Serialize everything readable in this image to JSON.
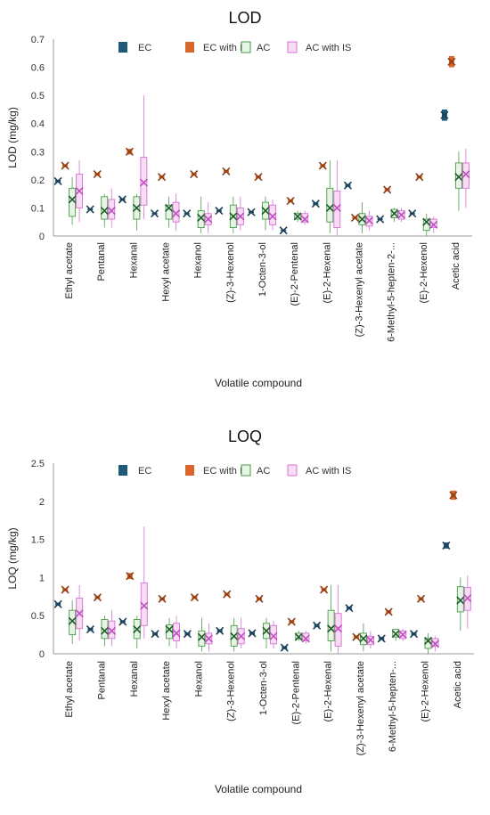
{
  "chart_data": [
    {
      "type": "box",
      "title": "LOD",
      "xlabel": "Volatile compound",
      "ylabel": "LOD (mg/kg)",
      "ylim": [
        0,
        0.7
      ],
      "yticks": [
        "0",
        "0.1",
        "0.2",
        "0.3",
        "0.4",
        "0.5",
        "0.6",
        "0.7"
      ],
      "legend_position": "top",
      "grid": false,
      "categories": [
        "Ethyl acetate",
        "Pentanal",
        "Hexanal",
        "Hexyl acetate",
        "Hexanol",
        "(Z)-3-Hexenol",
        "1-Octen-3-ol",
        "(E)-2-Pentenal",
        "(E)-2-Hexenal",
        "(Z)-3-Hexenyl acetate",
        "6-Methyl-5-hepten-2-...",
        "(E)-2-Hexenol",
        "Acetic acid"
      ],
      "series": [
        {
          "name": "EC",
          "color": "#1f5a7a",
          "mean": [
            0.195,
            0.095,
            0.13,
            0.08,
            0.08,
            0.09,
            0.085,
            0.02,
            0.115,
            0.18,
            0.06,
            0.08,
            0.43
          ],
          "q1": [
            0.19,
            0.092,
            0.125,
            0.077,
            0.077,
            0.087,
            0.082,
            0.017,
            0.11,
            0.175,
            0.057,
            0.077,
            0.41
          ],
          "q3": [
            0.2,
            0.098,
            0.135,
            0.083,
            0.083,
            0.093,
            0.088,
            0.023,
            0.12,
            0.185,
            0.063,
            0.083,
            0.45
          ],
          "min": [
            0.19,
            0.092,
            0.125,
            0.077,
            0.077,
            0.087,
            0.082,
            0.017,
            0.11,
            0.175,
            0.057,
            0.077,
            0.41
          ],
          "max": [
            0.2,
            0.098,
            0.135,
            0.083,
            0.083,
            0.093,
            0.088,
            0.023,
            0.12,
            0.185,
            0.063,
            0.083,
            0.45
          ]
        },
        {
          "name": "EC with IS",
          "color": "#d9662b",
          "mean": [
            0.25,
            0.22,
            0.3,
            0.21,
            0.22,
            0.23,
            0.21,
            0.125,
            0.25,
            0.065,
            0.165,
            0.21,
            0.62
          ],
          "q1": [
            0.245,
            0.215,
            0.29,
            0.205,
            0.215,
            0.225,
            0.205,
            0.12,
            0.245,
            0.06,
            0.16,
            0.205,
            0.6
          ],
          "q3": [
            0.255,
            0.225,
            0.31,
            0.215,
            0.225,
            0.235,
            0.215,
            0.13,
            0.255,
            0.07,
            0.17,
            0.215,
            0.64
          ],
          "min": [
            0.245,
            0.215,
            0.29,
            0.205,
            0.215,
            0.225,
            0.205,
            0.12,
            0.245,
            0.06,
            0.16,
            0.205,
            0.6
          ],
          "max": [
            0.255,
            0.225,
            0.31,
            0.215,
            0.225,
            0.235,
            0.215,
            0.13,
            0.255,
            0.07,
            0.17,
            0.215,
            0.64
          ]
        },
        {
          "name": "AC",
          "color": "#4a9a4a",
          "mean": [
            0.13,
            0.09,
            0.1,
            0.1,
            0.065,
            0.07,
            0.09,
            0.07,
            0.1,
            0.06,
            0.08,
            0.05,
            0.21
          ],
          "q1": [
            0.07,
            0.06,
            0.06,
            0.06,
            0.03,
            0.03,
            0.06,
            0.06,
            0.05,
            0.04,
            0.065,
            0.02,
            0.17
          ],
          "q3": [
            0.17,
            0.14,
            0.14,
            0.11,
            0.09,
            0.11,
            0.12,
            0.08,
            0.17,
            0.08,
            0.095,
            0.06,
            0.26
          ],
          "min": [
            0.04,
            0.03,
            0.02,
            0.03,
            0.01,
            0.01,
            0.02,
            0.05,
            0.01,
            0.01,
            0.05,
            0.0,
            0.09
          ],
          "max": [
            0.21,
            0.15,
            0.15,
            0.14,
            0.14,
            0.14,
            0.14,
            0.09,
            0.27,
            0.12,
            0.1,
            0.08,
            0.3
          ]
        },
        {
          "name": "AC with IS",
          "color": "#d472d4",
          "mean": [
            0.16,
            0.09,
            0.19,
            0.08,
            0.06,
            0.07,
            0.07,
            0.06,
            0.1,
            0.055,
            0.075,
            0.04,
            0.22
          ],
          "q1": [
            0.1,
            0.06,
            0.11,
            0.05,
            0.04,
            0.04,
            0.04,
            0.05,
            0.03,
            0.035,
            0.06,
            0.03,
            0.17
          ],
          "q3": [
            0.22,
            0.13,
            0.28,
            0.12,
            0.08,
            0.1,
            0.11,
            0.08,
            0.16,
            0.07,
            0.09,
            0.06,
            0.26
          ],
          "min": [
            0.05,
            0.03,
            0.06,
            0.02,
            0.01,
            0.02,
            0.02,
            0.04,
            0.0,
            0.02,
            0.05,
            0.01,
            0.1
          ],
          "max": [
            0.27,
            0.17,
            0.5,
            0.15,
            0.12,
            0.14,
            0.13,
            0.09,
            0.27,
            0.09,
            0.1,
            0.07,
            0.31
          ]
        }
      ]
    },
    {
      "type": "box",
      "title": "LOQ",
      "xlabel": "Volatile compound",
      "ylabel": "LOQ  (mg/kg)",
      "ylim": [
        0,
        2.5
      ],
      "yticks": [
        "0",
        "0.5",
        "1",
        "1.5",
        "2",
        "2.5"
      ],
      "legend_position": "top",
      "grid": false,
      "categories": [
        "Ethyl acetate",
        "Pentanal",
        "Hexanal",
        "Hexyl acetate",
        "Hexanol",
        "(Z)-3-Hexenol",
        "1-Octen-3-ol",
        "(E)-2-Pentenal",
        "(E)-2-Hexenal",
        "(Z)-3-Hexenyl acetate",
        "6-Methyl-5-hepten-...",
        "(E)-2-Hexenol",
        "Acetic acid"
      ],
      "series": [
        {
          "name": "EC",
          "color": "#1f5a7a",
          "mean": [
            0.65,
            0.32,
            0.42,
            0.26,
            0.26,
            0.3,
            0.27,
            0.08,
            0.37,
            0.6,
            0.2,
            0.26,
            1.42
          ],
          "q1": [
            0.63,
            0.3,
            0.4,
            0.24,
            0.24,
            0.28,
            0.25,
            0.06,
            0.35,
            0.58,
            0.18,
            0.24,
            1.38
          ],
          "q3": [
            0.67,
            0.34,
            0.44,
            0.28,
            0.28,
            0.32,
            0.29,
            0.1,
            0.39,
            0.62,
            0.22,
            0.28,
            1.46
          ],
          "min": [
            0.63,
            0.3,
            0.4,
            0.24,
            0.24,
            0.28,
            0.25,
            0.06,
            0.35,
            0.58,
            0.18,
            0.24,
            1.38
          ],
          "max": [
            0.67,
            0.34,
            0.44,
            0.28,
            0.28,
            0.32,
            0.29,
            0.1,
            0.39,
            0.62,
            0.22,
            0.28,
            1.46
          ]
        },
        {
          "name": "EC with IS",
          "color": "#d9662b",
          "mean": [
            0.84,
            0.74,
            1.02,
            0.72,
            0.74,
            0.78,
            0.72,
            0.42,
            0.84,
            0.22,
            0.55,
            0.72,
            2.08
          ],
          "q1": [
            0.82,
            0.72,
            0.98,
            0.7,
            0.72,
            0.76,
            0.7,
            0.4,
            0.82,
            0.2,
            0.53,
            0.7,
            2.02
          ],
          "q3": [
            0.86,
            0.76,
            1.06,
            0.74,
            0.76,
            0.8,
            0.74,
            0.44,
            0.86,
            0.24,
            0.57,
            0.74,
            2.14
          ],
          "min": [
            0.82,
            0.72,
            0.98,
            0.7,
            0.72,
            0.76,
            0.7,
            0.4,
            0.82,
            0.2,
            0.53,
            0.7,
            2.02
          ],
          "max": [
            0.82,
            0.76,
            1.06,
            0.74,
            0.76,
            0.8,
            0.74,
            0.44,
            0.86,
            0.24,
            0.57,
            0.74,
            2.14
          ]
        },
        {
          "name": "AC",
          "color": "#4a9a4a",
          "mean": [
            0.43,
            0.3,
            0.32,
            0.32,
            0.22,
            0.23,
            0.3,
            0.22,
            0.33,
            0.2,
            0.26,
            0.17,
            0.7
          ],
          "q1": [
            0.25,
            0.2,
            0.2,
            0.2,
            0.1,
            0.1,
            0.2,
            0.2,
            0.17,
            0.12,
            0.22,
            0.07,
            0.55
          ],
          "q3": [
            0.57,
            0.45,
            0.45,
            0.38,
            0.3,
            0.37,
            0.4,
            0.27,
            0.57,
            0.27,
            0.32,
            0.2,
            0.88
          ],
          "min": [
            0.13,
            0.1,
            0.07,
            0.1,
            0.03,
            0.03,
            0.07,
            0.17,
            0.03,
            0.03,
            0.17,
            0.0,
            0.3
          ],
          "max": [
            0.7,
            0.5,
            0.5,
            0.47,
            0.47,
            0.47,
            0.47,
            0.3,
            0.9,
            0.4,
            0.33,
            0.27,
            1.0
          ]
        },
        {
          "name": "AC with IS",
          "color": "#d472d4",
          "mean": [
            0.53,
            0.3,
            0.63,
            0.27,
            0.2,
            0.23,
            0.23,
            0.2,
            0.33,
            0.18,
            0.25,
            0.13,
            0.73
          ],
          "q1": [
            0.33,
            0.2,
            0.37,
            0.17,
            0.13,
            0.13,
            0.13,
            0.17,
            0.1,
            0.12,
            0.2,
            0.1,
            0.57
          ],
          "q3": [
            0.73,
            0.43,
            0.93,
            0.4,
            0.27,
            0.33,
            0.37,
            0.27,
            0.53,
            0.23,
            0.3,
            0.2,
            0.87
          ],
          "min": [
            0.17,
            0.1,
            0.2,
            0.07,
            0.03,
            0.07,
            0.07,
            0.13,
            0.0,
            0.07,
            0.17,
            0.03,
            0.33
          ],
          "max": [
            0.9,
            0.57,
            1.67,
            0.5,
            0.4,
            0.47,
            0.43,
            0.3,
            0.9,
            0.3,
            0.33,
            0.23,
            1.03
          ]
        }
      ]
    }
  ]
}
